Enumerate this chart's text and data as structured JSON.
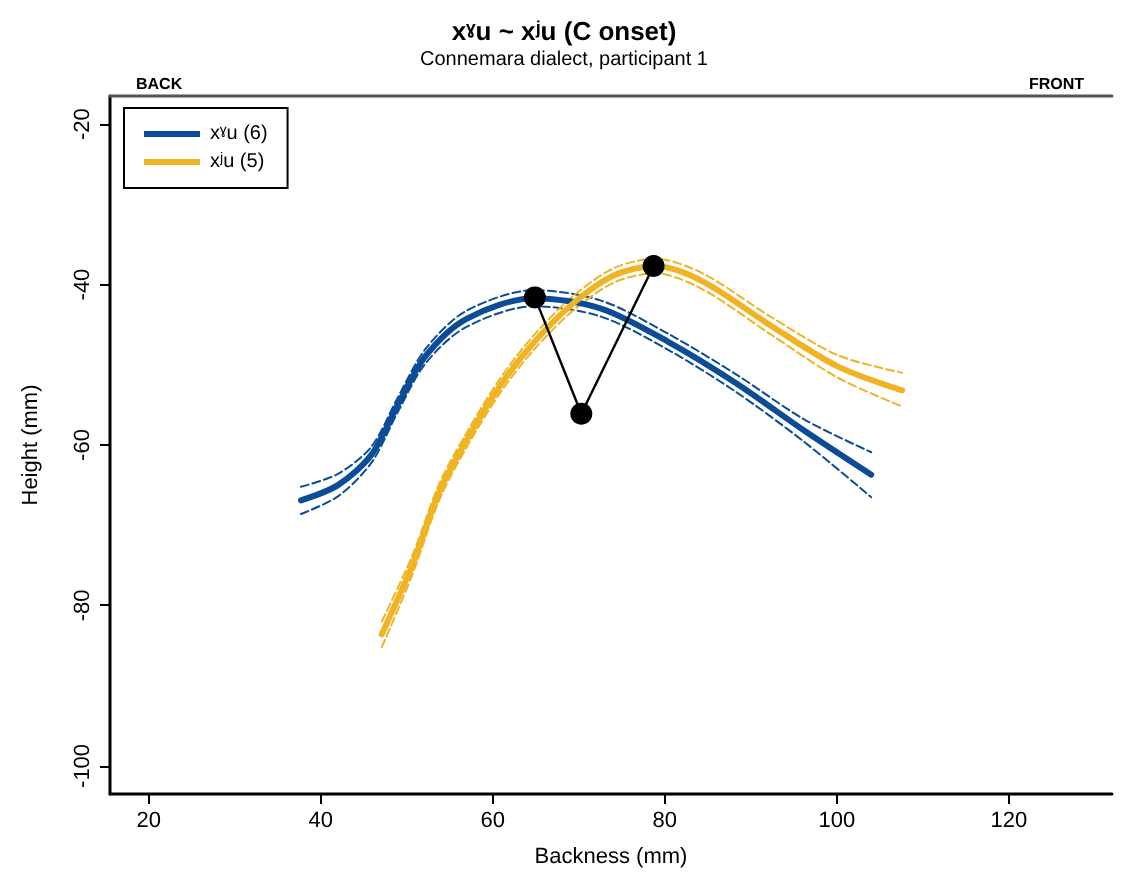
{
  "chart_data": {
    "type": "line",
    "title": "xˠu ~ xʲu (C onset)",
    "subtitle": "Connemara dialect, participant 1",
    "xlabel": "Backness (mm)",
    "ylabel": "Height (mm)",
    "annotations": [
      "BACK",
      "FRONT"
    ],
    "xlim": [
      15.5,
      132
    ],
    "xticks": [
      20,
      40,
      60,
      80,
      100,
      120
    ],
    "ylim": [
      -103.5,
      -16.5
    ],
    "yticks": [
      -100,
      -80,
      -60,
      -40,
      -20
    ],
    "grid": false,
    "legend": "top left",
    "marker": "none",
    "line_style": "solid",
    "series": [
      {
        "name": "xˠu (6)",
        "color": "#0b4c96",
        "x": [
          37.7,
          42.0,
          45.9,
          49.0,
          52.2,
          56.9,
          64.8,
          72.6,
          80.5,
          88.3,
          96.2,
          104.0
        ],
        "values": [
          -66.9,
          -65.0,
          -61.2,
          -54.9,
          -48.9,
          -44.3,
          -41.7,
          -43.0,
          -47.2,
          -52.3,
          -58.2,
          -63.7
        ]
      },
      {
        "color": "#0b4c96",
        "line_style": "dashed",
        "x": [
          37.7,
          42.0,
          45.9,
          49.0,
          52.2,
          56.9,
          64.8,
          72.6,
          80.5,
          88.3,
          96.2,
          104.0
        ],
        "values": [
          -65.2,
          -63.6,
          -60.2,
          -54.0,
          -48.0,
          -43.3,
          -40.7,
          -42.0,
          -46.2,
          -51.2,
          -56.8,
          -60.9
        ]
      },
      {
        "color": "#0b4c96",
        "line_style": "dashed",
        "x": [
          37.7,
          42.0,
          45.9,
          49.0,
          52.2,
          56.9,
          64.8,
          72.6,
          80.5,
          88.3,
          96.2,
          104.0
        ],
        "values": [
          -68.6,
          -66.4,
          -62.2,
          -55.8,
          -49.8,
          -45.3,
          -42.7,
          -44.0,
          -48.2,
          -53.4,
          -59.6,
          -66.5
        ]
      },
      {
        "name": "xʲu (5)",
        "color": "#f0b323",
        "x": [
          47.1,
          50.6,
          53.8,
          56.9,
          60.8,
          64.8,
          69.5,
          74.2,
          78.9,
          84.4,
          92.3,
          100.1,
          107.6
        ],
        "values": [
          -83.6,
          -75.1,
          -65.8,
          -59.5,
          -52.7,
          -47.2,
          -42.2,
          -38.8,
          -37.7,
          -39.6,
          -45.1,
          -50.2,
          -53.2
        ]
      },
      {
        "color": "#f0b323",
        "line_style": "dashed",
        "x": [
          47.1,
          50.6,
          53.8,
          56.9,
          60.8,
          64.8,
          69.5,
          74.2,
          78.9,
          84.4,
          92.3,
          100.1,
          107.6
        ],
        "values": [
          -82.0,
          -73.9,
          -64.8,
          -58.6,
          -51.8,
          -46.3,
          -41.3,
          -37.9,
          -36.8,
          -38.6,
          -44.0,
          -48.8,
          -51.0
        ]
      },
      {
        "color": "#f0b323",
        "line_style": "dashed",
        "x": [
          47.1,
          50.6,
          53.8,
          56.9,
          60.8,
          64.8,
          69.5,
          74.2,
          78.9,
          84.4,
          92.3,
          100.1,
          107.6
        ],
        "values": [
          -85.2,
          -76.3,
          -66.8,
          -60.4,
          -53.6,
          -48.1,
          -43.1,
          -39.7,
          -38.6,
          -40.6,
          -46.2,
          -51.6,
          -55.2
        ]
      },
      {
        "type": "line",
        "color": "#000000",
        "marker": "circle",
        "x": [
          64.9,
          70.3,
          78.7
        ],
        "values": [
          -41.6,
          -56.1,
          -37.7
        ]
      }
    ]
  }
}
